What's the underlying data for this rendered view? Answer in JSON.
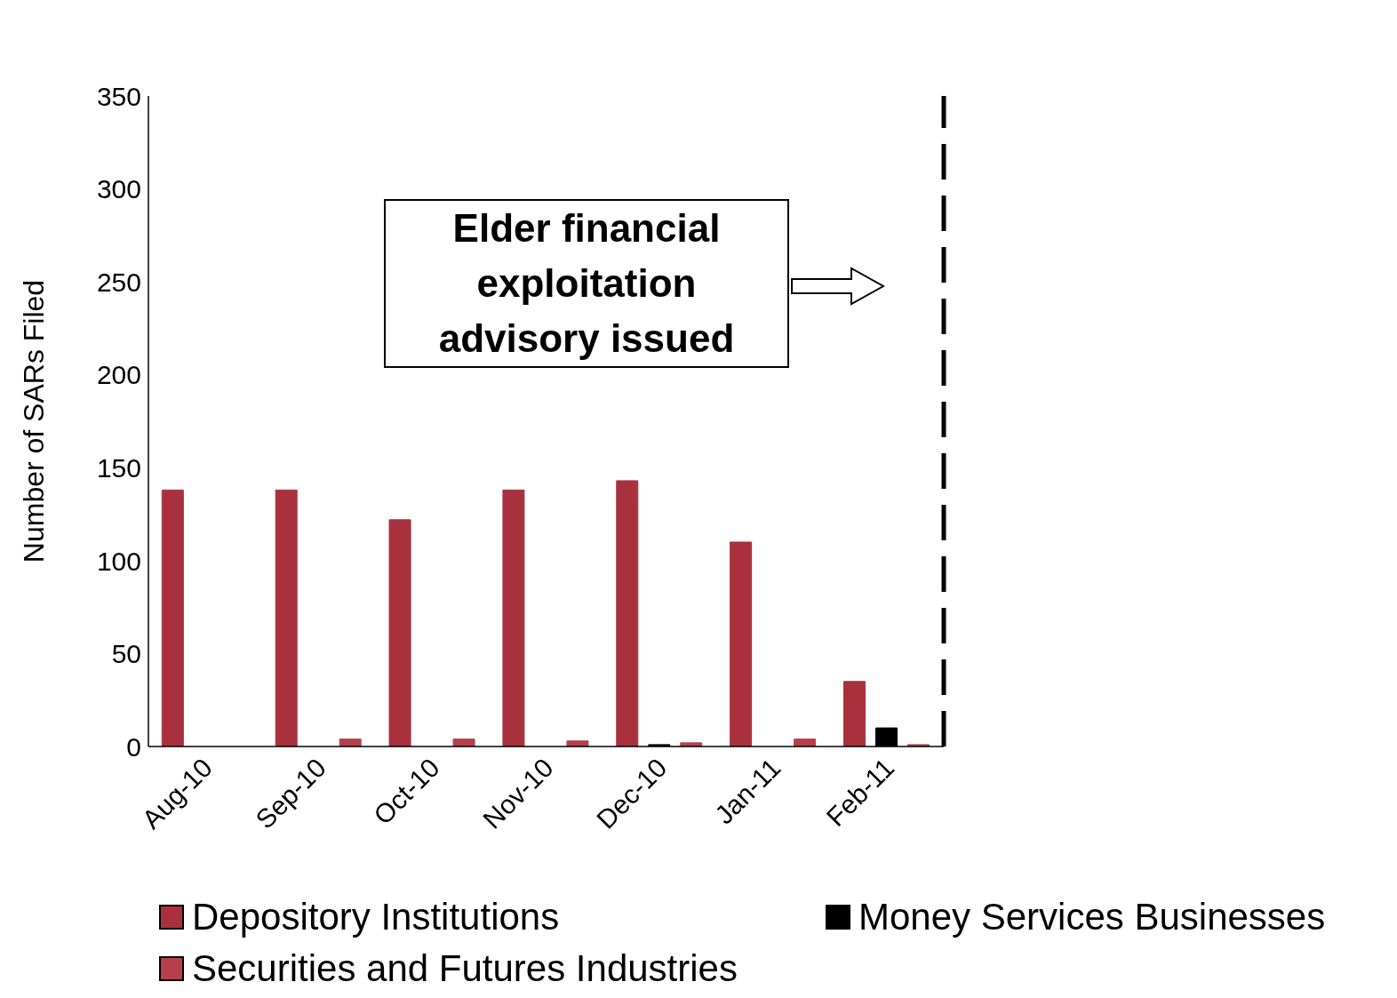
{
  "chart_data": {
    "type": "bar",
    "ylabel": "Number of SARs Filed",
    "categories": [
      "Aug-10",
      "Sep-10",
      "Oct-10",
      "Nov-10",
      "Dec-10",
      "Jan-11",
      "Feb-11"
    ],
    "series": [
      {
        "name": "Depository Institutions",
        "color": "#a9313d",
        "values": [
          138,
          138,
          122,
          138,
          143,
          110,
          35
        ]
      },
      {
        "name": "Money Services Businesses",
        "color": "#000000",
        "values": [
          0,
          0,
          0,
          0,
          1,
          0,
          10
        ]
      },
      {
        "name": "Securities and Futures Industries",
        "color": "#b5404c",
        "values": [
          0,
          4,
          4,
          3,
          2,
          4,
          1
        ]
      }
    ],
    "ref_lines": [
      {
        "axis": "x",
        "value": "Feb-11",
        "line_style": "dashed",
        "color": "#000000"
      }
    ],
    "ylim": [
      0,
      350
    ],
    "yticks": [
      0,
      50,
      100,
      150,
      200,
      250,
      300,
      350
    ],
    "grid": false,
    "legend": "bottom",
    "annotations": [
      "Elder financial exploitation advisory issued"
    ]
  }
}
